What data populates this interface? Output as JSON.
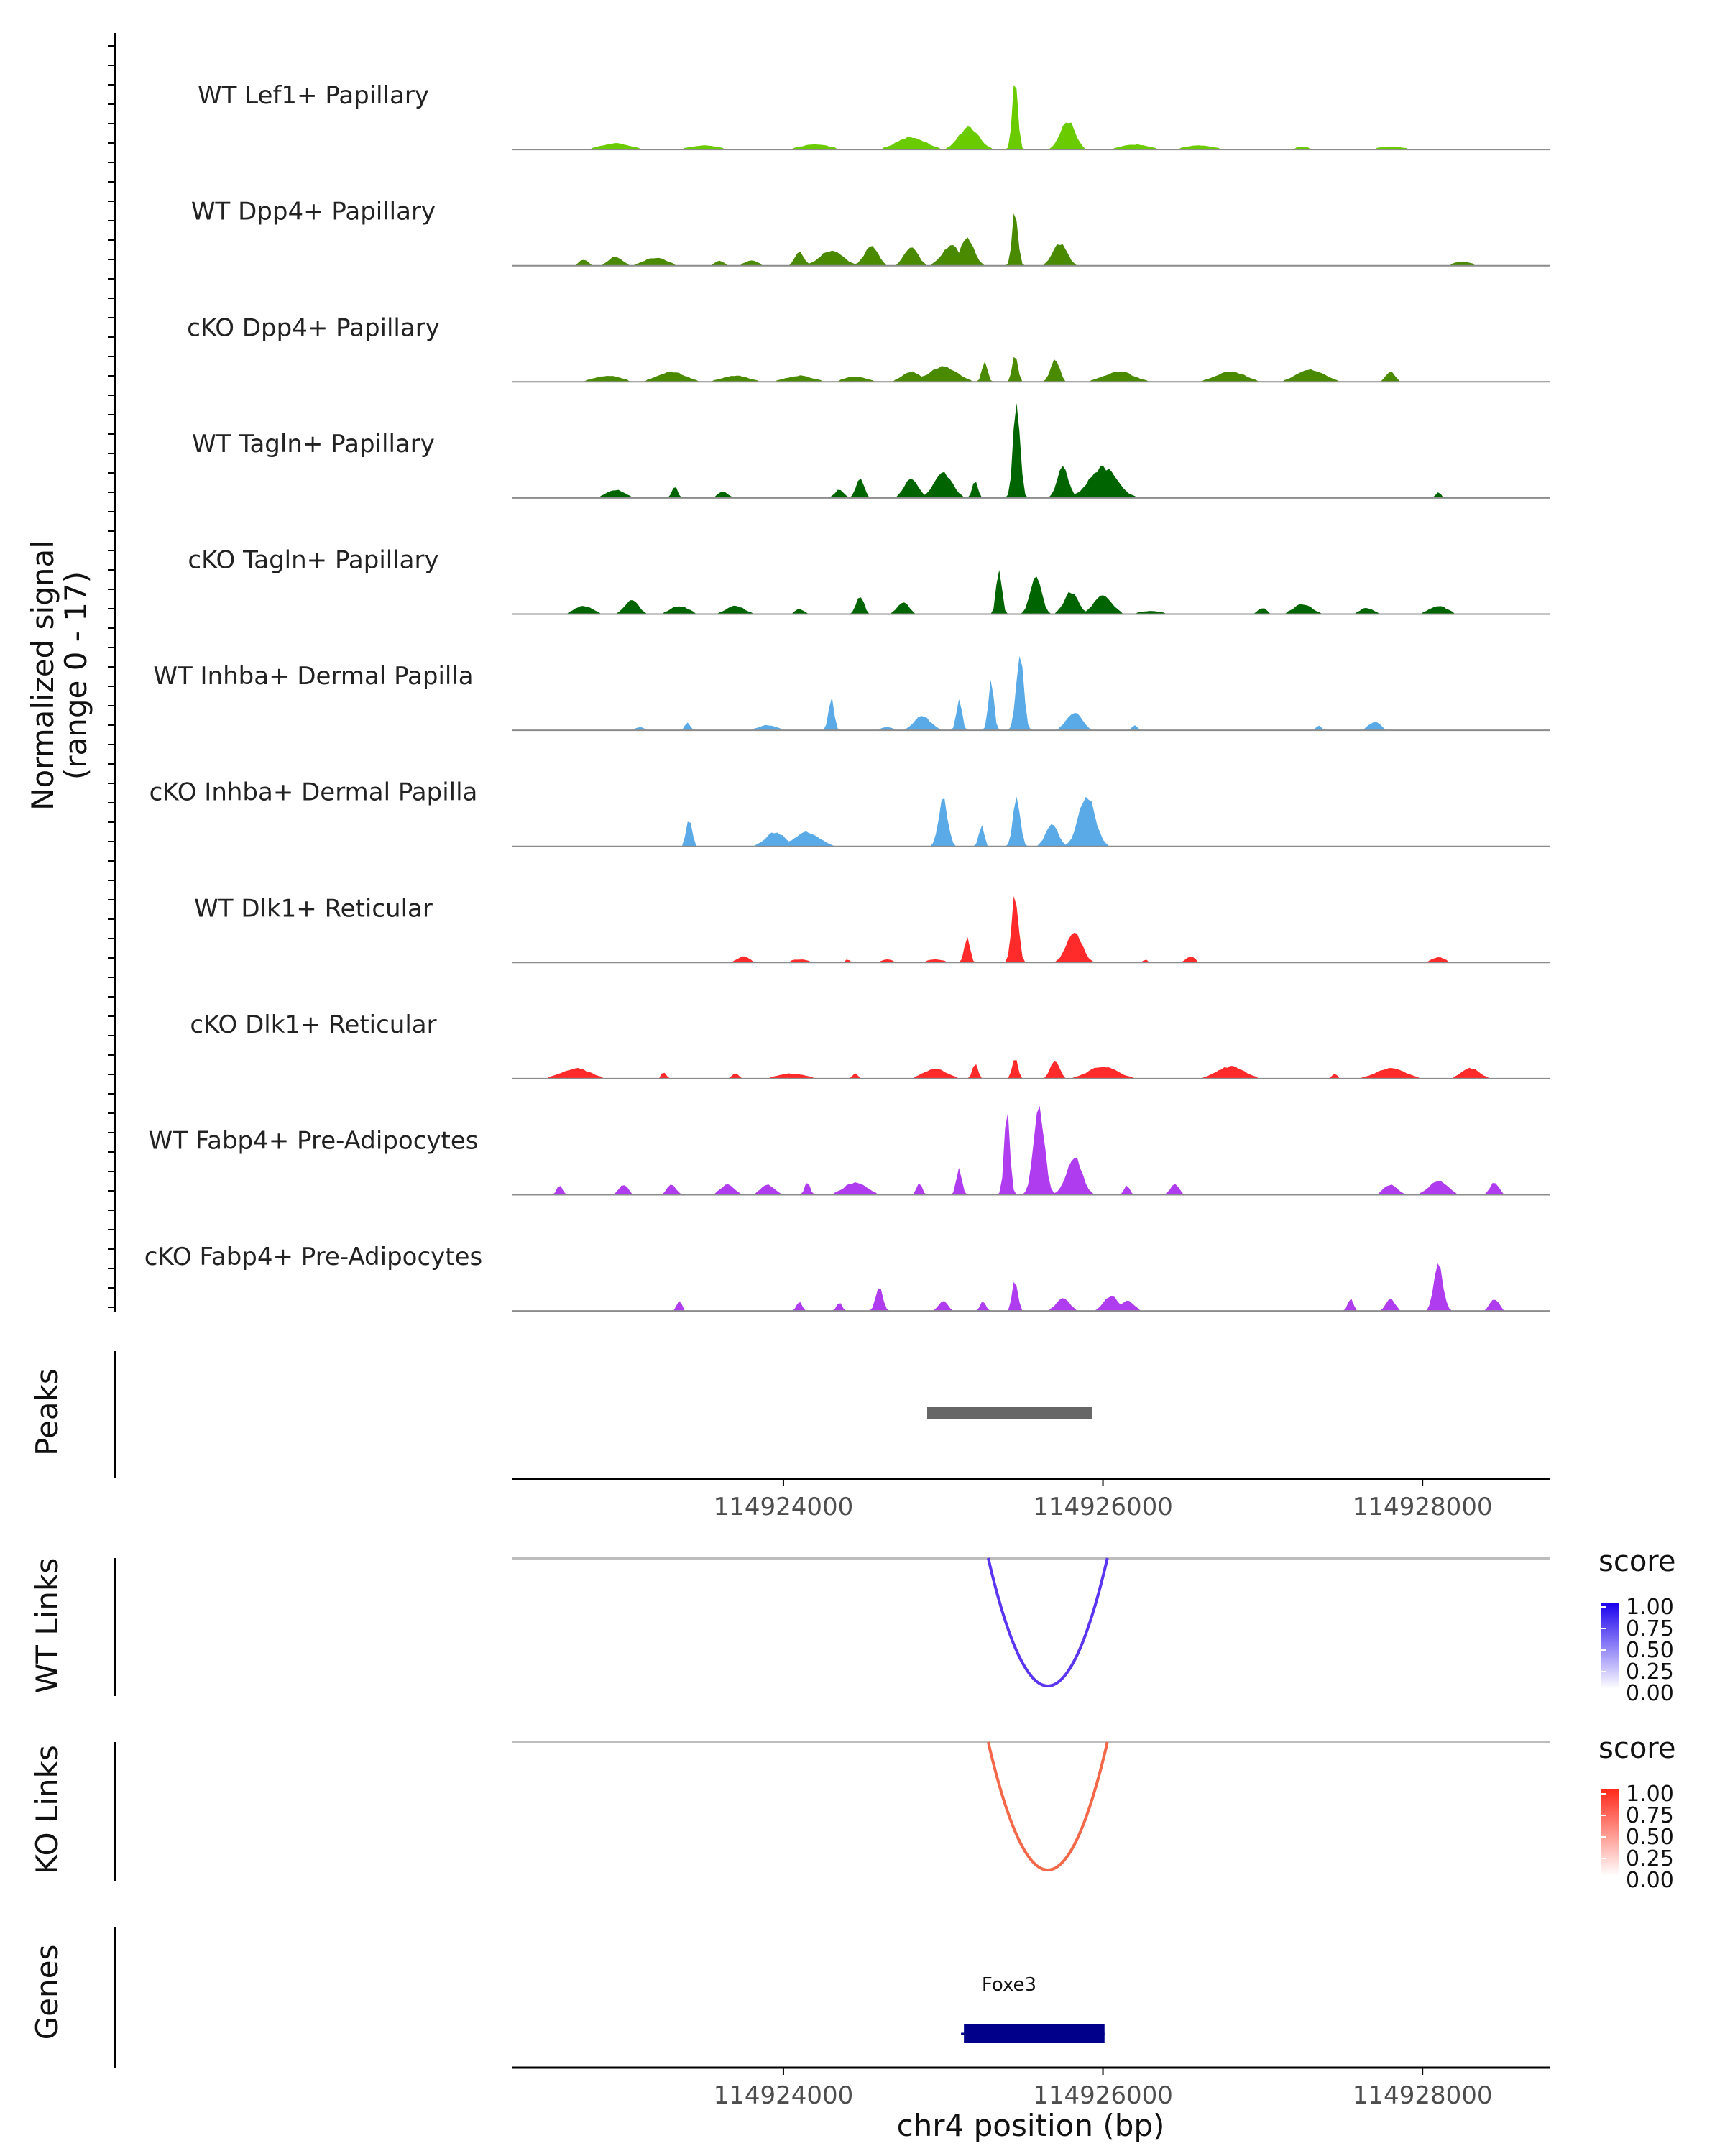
{
  "chart_data": {
    "type": "area",
    "region": {
      "chrom": "chr4",
      "start": 114922300,
      "end": 114928800
    },
    "xlabel": "chr4 position (bp)",
    "xticks": [
      114924000,
      114926000,
      114928000
    ],
    "xtick_labels": [
      "114924000",
      "114926000",
      "114928000"
    ],
    "coverage_ylabel_line1": "Normalized signal",
    "coverage_ylabel_line2": "(range 0 - 17)",
    "ymax": 17,
    "tracks": [
      {
        "name": "WT Lef1+ Papillary",
        "color": "#6acc00",
        "peaks": [
          [
            114922950,
            114923350,
            0.06
          ],
          [
            114923500,
            114923900,
            0.04
          ],
          [
            114924200,
            114924700,
            0.05
          ],
          [
            114924800,
            114925200,
            0.12
          ],
          [
            114925160,
            114925380,
            0.22
          ],
          [
            114925440,
            114925100,
            0.05
          ],
          [
            114925450,
            114925230,
            0.72
          ],
          [
            114925780,
            114925130,
            0.28
          ],
          [
            114926200,
            114926500,
            0.05
          ],
          [
            114926600,
            114927000,
            0.04
          ],
          [
            114927250,
            114927400,
            0.03
          ],
          [
            114927800,
            114928100,
            0.03
          ]
        ]
      },
      {
        "name": "WT Dpp4+ Papillary",
        "color": "#4a8a00",
        "peaks": [
          [
            114922750,
            114922850,
            0.06
          ],
          [
            114922950,
            114923100,
            0.09
          ],
          [
            114923200,
            114923450,
            0.08
          ],
          [
            114923600,
            114923700,
            0.05
          ],
          [
            114923800,
            114923950,
            0.05
          ],
          [
            114924100,
            114924200,
            0.14
          ],
          [
            114924300,
            114924550,
            0.15
          ],
          [
            114924550,
            114924700,
            0.2
          ],
          [
            114924800,
            114924950,
            0.18
          ],
          [
            114925050,
            114925250,
            0.2
          ],
          [
            114925150,
            114925300,
            0.28
          ],
          [
            114925450,
            114925200,
            0.55
          ],
          [
            114925730,
            114925100,
            0.22
          ],
          [
            114928250,
            114928450,
            0.04
          ]
        ]
      },
      {
        "name": "cKO Dpp4+ Papillary",
        "color": "#4a8a00",
        "peaks": [
          [
            114922900,
            114923200,
            0.06
          ],
          [
            114923300,
            114923600,
            0.1
          ],
          [
            114923700,
            114924000,
            0.06
          ],
          [
            114924100,
            114924400,
            0.06
          ],
          [
            114924450,
            114924700,
            0.05
          ],
          [
            114924800,
            114925000,
            0.1
          ],
          [
            114925000,
            114925300,
            0.15
          ],
          [
            114925260,
            114925200,
            0.2
          ],
          [
            114925450,
            114925400,
            0.28
          ],
          [
            114925700,
            114925300,
            0.22
          ],
          [
            114926100,
            114926500,
            0.1
          ],
          [
            114926800,
            114927300,
            0.1
          ],
          [
            114927300,
            114927600,
            0.12
          ],
          [
            114927800,
            114927900,
            0.1
          ]
        ]
      },
      {
        "name": "WT Tagln+ Papillary",
        "color": "#006400",
        "peaks": [
          [
            114922950,
            114923150,
            0.08
          ],
          [
            114923320,
            114923120,
            0.12
          ],
          [
            114923620,
            114923150,
            0.06
          ],
          [
            114924350,
            114924450,
            0.08
          ],
          [
            114924480,
            114924130,
            0.2
          ],
          [
            114924800,
            114924200,
            0.2
          ],
          [
            114925000,
            114925200,
            0.24
          ],
          [
            114925200,
            114925200,
            0.18
          ],
          [
            114925460,
            114925160,
            0.95
          ],
          [
            114925750,
            114925250,
            0.3
          ],
          [
            114926000,
            114926300,
            0.3
          ],
          [
            114926100,
            114926150,
            0.15
          ],
          [
            114928100,
            114928150,
            0.06
          ]
        ]
      },
      {
        "name": "cKO Tagln+ Papillary",
        "color": "#006400",
        "peaks": [
          [
            114922750,
            114922950,
            0.08
          ],
          [
            114923050,
            114923200,
            0.14
          ],
          [
            114923350,
            114923550,
            0.08
          ],
          [
            114923700,
            114923900,
            0.08
          ],
          [
            114924100,
            114924200,
            0.05
          ],
          [
            114924480,
            114924150,
            0.18
          ],
          [
            114924750,
            114924250,
            0.12
          ],
          [
            114925350,
            114925150,
            0.45
          ],
          [
            114925580,
            114925100,
            0.38
          ],
          [
            114925800,
            114925200,
            0.22
          ],
          [
            114926000,
            114926200,
            0.18
          ],
          [
            114926300,
            114926550,
            0.03
          ],
          [
            114927000,
            114927100,
            0.06
          ],
          [
            114927250,
            114927450,
            0.1
          ],
          [
            114927650,
            114927800,
            0.06
          ],
          [
            114928100,
            114928300,
            0.08
          ]
        ]
      },
      {
        "name": "WT Inhba+ Dermal Papilla",
        "color": "#5aaae8",
        "peaks": [
          [
            114923100,
            114923200,
            0.03
          ],
          [
            114923400,
            114923200,
            0.08
          ],
          [
            114923900,
            114923100,
            0.05
          ],
          [
            114924300,
            114924300,
            0.32
          ],
          [
            114924650,
            114924100,
            0.03
          ],
          [
            114924870,
            114924150,
            0.14
          ],
          [
            114925100,
            114924900,
            0.3
          ],
          [
            114925300,
            114925150,
            0.5
          ],
          [
            114925480,
            114925150,
            0.75
          ],
          [
            114925820,
            114925150,
            0.18
          ],
          [
            114926200,
            114926150,
            0.05
          ],
          [
            114927350,
            114927150,
            0.05
          ],
          [
            114927700,
            114927150,
            0.08
          ]
        ]
      },
      {
        "name": "cKO Inhba+ Dermal Papilla",
        "color": "#5aaae8",
        "peaks": [
          [
            114923410,
            114923150,
            0.28
          ],
          [
            114923950,
            114923100,
            0.14
          ],
          [
            114924150,
            114923100,
            0.14
          ],
          [
            114925000,
            114925100,
            0.46
          ],
          [
            114925240,
            114925100,
            0.2
          ],
          [
            114925460,
            114925150,
            0.5
          ],
          [
            114925680,
            114925140,
            0.22
          ],
          [
            114925900,
            114925180,
            0.5
          ]
        ]
      },
      {
        "name": "WT Dlk1+ Reticular",
        "color": "#ff2a2a",
        "peaks": [
          [
            114923750,
            114923200,
            0.06
          ],
          [
            114924100,
            114923300,
            0.03
          ],
          [
            114924400,
            114924150,
            0.03
          ],
          [
            114924650,
            114924150,
            0.03
          ],
          [
            114924950,
            114924150,
            0.03
          ],
          [
            114925150,
            114925150,
            0.26
          ],
          [
            114925450,
            114925150,
            0.66
          ],
          [
            114925820,
            114925150,
            0.3
          ],
          [
            114926270,
            114926150,
            0.03
          ],
          [
            114926550,
            114926150,
            0.06
          ],
          [
            114928100,
            114928250,
            0.05
          ]
        ]
      },
      {
        "name": "cKO Dlk1+ Reticular",
        "color": "#ff2a2a",
        "peaks": [
          [
            114922700,
            114923100,
            0.1
          ],
          [
            114923250,
            114923150,
            0.06
          ],
          [
            114923700,
            114923400,
            0.05
          ],
          [
            114924050,
            114924400,
            0.05
          ],
          [
            114924450,
            114924200,
            0.05
          ],
          [
            114924950,
            114925200,
            0.1
          ],
          [
            114925200,
            114925100,
            0.15
          ],
          [
            114925450,
            114925350,
            0.22
          ],
          [
            114925700,
            114925300,
            0.18
          ],
          [
            114926000,
            114926500,
            0.12
          ],
          [
            114926800,
            114927100,
            0.12
          ],
          [
            114927450,
            114927500,
            0.05
          ],
          [
            114927800,
            114928150,
            0.1
          ],
          [
            114928300,
            114928500,
            0.1
          ]
        ]
      },
      {
        "name": "WT Fabp4+ Pre-Adipocytes",
        "color": "#b03cf0",
        "peaks": [
          [
            114922600,
            114922660,
            0.1
          ],
          [
            114923000,
            114923100,
            0.1
          ],
          [
            114923300,
            114923400,
            0.1
          ],
          [
            114923650,
            114923800,
            0.1
          ],
          [
            114923900,
            114924050,
            0.1
          ],
          [
            114924150,
            114924200,
            0.12
          ],
          [
            114924450,
            114924700,
            0.12
          ],
          [
            114924850,
            114924900,
            0.12
          ],
          [
            114925100,
            114925150,
            0.25
          ],
          [
            114925400,
            114925150,
            0.8
          ],
          [
            114925600,
            114925120,
            0.85
          ],
          [
            114925820,
            114925150,
            0.38
          ],
          [
            114926150,
            114926200,
            0.1
          ],
          [
            114926450,
            114926550,
            0.1
          ],
          [
            114927800,
            114927950,
            0.1
          ],
          [
            114928100,
            114928300,
            0.14
          ],
          [
            114928450,
            114928550,
            0.12
          ]
        ]
      },
      {
        "name": "cKO Fabp4+ Pre-Adipocytes",
        "color": "#b03cf0",
        "peaks": [
          [
            114923350,
            114923300,
            0.1
          ],
          [
            114924100,
            114924150,
            0.1
          ],
          [
            114924350,
            114924150,
            0.08
          ],
          [
            114924600,
            114924300,
            0.25
          ],
          [
            114925000,
            114925100,
            0.1
          ],
          [
            114925250,
            114925150,
            0.1
          ],
          [
            114925450,
            114925200,
            0.3
          ],
          [
            114925750,
            114925150,
            0.12
          ],
          [
            114926050,
            114926200,
            0.15
          ],
          [
            114926150,
            114926300,
            0.1
          ],
          [
            114927550,
            114927600,
            0.12
          ],
          [
            114927800,
            114927900,
            0.12
          ],
          [
            114928100,
            114928200,
            0.45
          ],
          [
            114928450,
            114928550,
            0.12
          ]
        ]
      }
    ],
    "peaks_track": {
      "label": "Peaks",
      "ranges": [
        [
          114924900,
          114925930
        ]
      ],
      "color": "#666666"
    },
    "links": [
      {
        "label": "WT Links",
        "start": 114925300,
        "end": 114926010,
        "score": 0.75,
        "color": "#5b35f0",
        "legend_title": "score",
        "legend_low": "#ffffff",
        "legend_high": "#1a00ee",
        "legend_ticks": [
          "1.00",
          "0.75",
          "0.50",
          "0.25",
          "0.00"
        ]
      },
      {
        "label": "KO Links",
        "start": 114925300,
        "end": 114926010,
        "score": 0.75,
        "color": "#f4684a",
        "legend_title": "score",
        "legend_low": "#ffffff",
        "legend_high": "#ff2a1a",
        "legend_ticks": [
          "1.00",
          "0.75",
          "0.50",
          "0.25",
          "0.00"
        ]
      }
    ],
    "genes": {
      "label": "Genes",
      "items": [
        {
          "name": "Foxe3",
          "start": 114925130,
          "end": 114926010,
          "color": "#00008b"
        }
      ]
    }
  }
}
